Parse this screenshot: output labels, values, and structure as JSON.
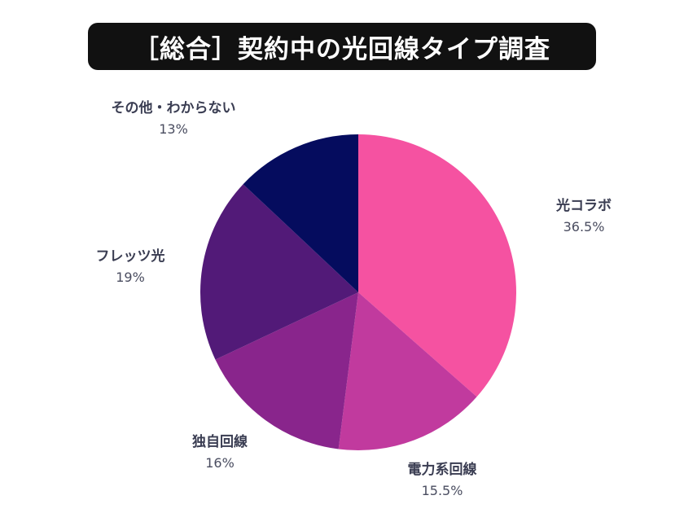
{
  "chart_data": {
    "type": "pie",
    "title": "［総合］契約中の光回線タイプ調査",
    "slices": [
      {
        "label": "光コラボ",
        "value": 36.5,
        "display": "36.5%",
        "color": "#f552a1"
      },
      {
        "label": "電力系回線",
        "value": 15.5,
        "display": "15.5%",
        "color": "#c13a9e"
      },
      {
        "label": "独自回線",
        "value": 16,
        "display": "16%",
        "color": "#89258c"
      },
      {
        "label": "フレッツ光",
        "value": 19,
        "display": "19%",
        "color": "#521a78"
      },
      {
        "label": "その他・わからない",
        "value": 13,
        "display": "13%",
        "color": "#050c5e"
      }
    ]
  }
}
